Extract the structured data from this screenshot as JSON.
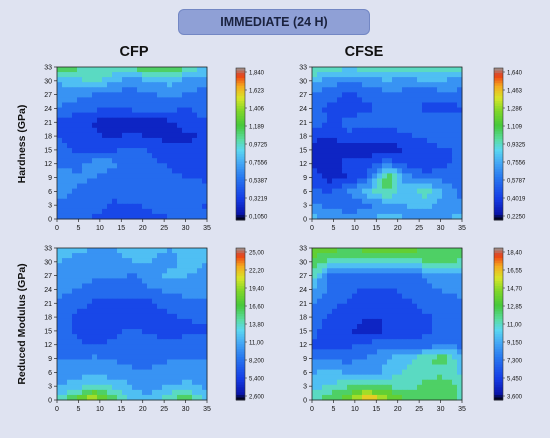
{
  "header": {
    "title": "IMMEDIATE (24 H)"
  },
  "columns": [
    "CFP",
    "CFSE"
  ],
  "rows": [
    "Hardness (GPa)",
    "Reduced Modulus (GPa)"
  ],
  "chart_data": [
    {
      "type": "heatmap",
      "name": "CFP",
      "metric": "Hardness (GPa)",
      "x_ticks": [
        "0",
        "5",
        "10",
        "15",
        "20",
        "25",
        "30",
        "35"
      ],
      "y_ticks": [
        "0",
        "3",
        "6",
        "9",
        "12",
        "15",
        "18",
        "21",
        "24",
        "27",
        "30",
        "33"
      ],
      "xlim": [
        0,
        35
      ],
      "ylim": [
        0,
        33
      ],
      "colorbar_ticks": [
        "1,840",
        "1,623",
        "1,406",
        "1,189",
        "0,9725",
        "0,7556",
        "0,5387",
        "0,3219",
        "0,1050"
      ],
      "colorbar_range": [
        0.105,
        1.84
      ],
      "grid": [
        [
          0.55,
          0.5,
          0.45,
          0.42,
          0.4,
          0.42,
          0.45,
          0.5,
          0.48
        ],
        [
          0.6,
          0.55,
          0.5,
          0.45,
          0.45,
          0.5,
          0.55,
          0.5,
          0.45
        ],
        [
          0.65,
          0.6,
          0.55,
          0.5,
          0.55,
          0.6,
          0.6,
          0.55,
          0.5
        ],
        [
          0.7,
          0.65,
          0.6,
          0.55,
          0.5,
          0.55,
          0.5,
          0.45,
          0.45
        ],
        [
          0.6,
          0.55,
          0.7,
          0.65,
          0.55,
          0.5,
          0.45,
          0.4,
          0.45
        ],
        [
          0.55,
          0.45,
          0.4,
          0.45,
          0.5,
          0.45,
          0.4,
          0.35,
          0.4
        ],
        [
          0.45,
          0.4,
          0.35,
          0.3,
          0.35,
          0.3,
          0.25,
          0.3,
          0.35
        ],
        [
          0.45,
          0.35,
          0.3,
          0.25,
          0.2,
          0.25,
          0.3,
          0.4,
          0.45
        ],
        [
          0.6,
          0.55,
          0.5,
          0.45,
          0.5,
          0.55,
          0.5,
          0.45,
          0.55
        ],
        [
          0.7,
          0.65,
          0.6,
          0.55,
          0.55,
          0.6,
          0.65,
          0.6,
          0.55
        ],
        [
          0.75,
          0.85,
          1.0,
          0.75,
          0.7,
          0.75,
          0.8,
          0.7,
          0.65
        ],
        [
          1.3,
          1.1,
          1.0,
          1.05,
          1.1,
          1.15,
          1.25,
          1.0,
          0.9
        ]
      ]
    },
    {
      "type": "heatmap",
      "name": "CFSE",
      "metric": "Hardness (GPa)",
      "x_ticks": [
        "0",
        "5",
        "10",
        "15",
        "20",
        "25",
        "30",
        "35"
      ],
      "y_ticks": [
        "0",
        "3",
        "6",
        "9",
        "12",
        "15",
        "18",
        "21",
        "24",
        "27",
        "30",
        "33"
      ],
      "xlim": [
        0,
        35
      ],
      "ylim": [
        0,
        33
      ],
      "colorbar_ticks": [
        "1,640",
        "1,463",
        "1,286",
        "1,109",
        "0,9325",
        "0,7556",
        "0,5787",
        "0,4019",
        "0,2250"
      ],
      "colorbar_range": [
        0.225,
        1.64
      ],
      "grid": [
        [
          0.8,
          0.75,
          0.7,
          0.75,
          0.8,
          0.75,
          0.7,
          0.75,
          0.8
        ],
        [
          0.65,
          0.6,
          0.55,
          0.6,
          0.7,
          0.75,
          0.8,
          0.7,
          0.65
        ],
        [
          0.55,
          0.5,
          0.65,
          0.85,
          1.0,
          0.8,
          0.95,
          0.75,
          0.6
        ],
        [
          0.45,
          0.35,
          0.4,
          0.55,
          1.1,
          0.7,
          0.55,
          0.6,
          0.55
        ],
        [
          0.4,
          0.35,
          0.45,
          0.5,
          0.6,
          0.5,
          0.45,
          0.5,
          0.55
        ],
        [
          0.35,
          0.3,
          0.35,
          0.3,
          0.35,
          0.4,
          0.45,
          0.5,
          0.55
        ],
        [
          0.45,
          0.4,
          0.5,
          0.45,
          0.45,
          0.5,
          0.55,
          0.6,
          0.6
        ],
        [
          0.6,
          0.5,
          0.55,
          0.6,
          0.55,
          0.6,
          0.65,
          0.6,
          0.55
        ],
        [
          0.55,
          0.5,
          0.45,
          0.5,
          0.6,
          0.55,
          0.5,
          0.45,
          0.5
        ],
        [
          0.65,
          0.55,
          0.5,
          0.55,
          0.6,
          0.6,
          0.55,
          0.6,
          0.6
        ],
        [
          0.8,
          0.7,
          0.65,
          0.7,
          0.75,
          0.7,
          0.75,
          0.75,
          0.7
        ],
        [
          1.05,
          0.95,
          0.9,
          0.95,
          1.0,
          1.0,
          1.0,
          0.95,
          0.95
        ]
      ]
    },
    {
      "type": "heatmap",
      "name": "CFP",
      "metric": "Reduced Modulus (GPa)",
      "x_ticks": [
        "0",
        "5",
        "10",
        "15",
        "20",
        "25",
        "30",
        "35"
      ],
      "y_ticks": [
        "0",
        "3",
        "6",
        "9",
        "12",
        "15",
        "18",
        "21",
        "24",
        "27",
        "30",
        "33"
      ],
      "xlim": [
        0,
        35
      ],
      "ylim": [
        0,
        33
      ],
      "colorbar_ticks": [
        "25,00",
        "22,20",
        "19,40",
        "16,60",
        "13,80",
        "11,00",
        "8,200",
        "5,400",
        "2,600"
      ],
      "colorbar_range": [
        2.6,
        25.0
      ],
      "grid": [
        [
          13.0,
          17.0,
          21.0,
          16.0,
          12.0,
          11.5,
          15.0,
          16.0,
          12.0
        ],
        [
          11.0,
          12.0,
          13.0,
          12.5,
          11.0,
          10.0,
          11.0,
          11.5,
          10.5
        ],
        [
          9.5,
          10.0,
          10.5,
          10.0,
          9.5,
          9.5,
          10.0,
          10.0,
          9.5
        ],
        [
          9.0,
          9.0,
          9.5,
          9.0,
          8.5,
          8.5,
          9.0,
          9.0,
          9.0
        ],
        [
          8.5,
          7.5,
          7.0,
          7.5,
          8.0,
          8.0,
          8.5,
          8.5,
          8.0
        ],
        [
          8.0,
          7.0,
          6.5,
          7.0,
          7.5,
          7.0,
          6.0,
          6.5,
          7.0
        ],
        [
          8.0,
          7.0,
          6.0,
          5.5,
          6.0,
          6.5,
          7.0,
          7.5,
          8.0
        ],
        [
          9.0,
          8.0,
          7.0,
          6.5,
          6.0,
          7.0,
          8.0,
          8.5,
          9.0
        ],
        [
          10.0,
          9.0,
          8.5,
          8.0,
          8.5,
          9.0,
          9.5,
          10.0,
          10.0
        ],
        [
          11.0,
          10.5,
          9.5,
          9.5,
          9.0,
          10.0,
          11.5,
          11.0,
          10.5
        ],
        [
          11.0,
          10.5,
          10.0,
          10.5,
          11.0,
          11.0,
          10.5,
          11.5,
          11.0
        ],
        [
          12.0,
          11.5,
          11.0,
          11.0,
          11.5,
          11.5,
          11.0,
          12.0,
          12.5
        ]
      ]
    },
    {
      "type": "heatmap",
      "name": "CFSE",
      "metric": "Reduced Modulus (GPa)",
      "x_ticks": [
        "0",
        "5",
        "10",
        "15",
        "20",
        "25",
        "30",
        "35"
      ],
      "y_ticks": [
        "0",
        "3",
        "6",
        "9",
        "12",
        "15",
        "18",
        "21",
        "24",
        "27",
        "30",
        "33"
      ],
      "xlim": [
        0,
        35
      ],
      "ylim": [
        0,
        33
      ],
      "colorbar_ticks": [
        "18,40",
        "16,55",
        "14,70",
        "12,85",
        "11,00",
        "9,150",
        "7,300",
        "5,450",
        "3,600"
      ],
      "colorbar_range": [
        3.6,
        18.4
      ],
      "grid": [
        [
          11.0,
          12.5,
          14.0,
          17.5,
          15.0,
          12.5,
          12.0,
          12.5,
          11.0
        ],
        [
          10.0,
          10.5,
          11.5,
          12.0,
          11.5,
          11.0,
          12.0,
          13.0,
          11.0
        ],
        [
          9.0,
          9.5,
          9.0,
          8.5,
          9.5,
          10.5,
          11.0,
          11.0,
          10.0
        ],
        [
          8.0,
          7.5,
          7.5,
          8.0,
          9.0,
          10.0,
          11.5,
          12.5,
          9.5
        ],
        [
          6.5,
          6.0,
          6.5,
          7.0,
          7.5,
          7.0,
          7.0,
          7.5,
          7.5
        ],
        [
          7.0,
          6.0,
          5.5,
          5.0,
          5.5,
          6.0,
          6.5,
          7.0,
          7.0
        ],
        [
          7.5,
          6.5,
          6.0,
          5.5,
          5.5,
          6.0,
          6.5,
          7.0,
          7.5
        ],
        [
          8.0,
          7.0,
          6.5,
          6.0,
          6.0,
          6.5,
          7.0,
          7.5,
          7.5
        ],
        [
          9.0,
          7.5,
          7.0,
          6.5,
          6.5,
          7.0,
          7.5,
          8.0,
          8.5
        ],
        [
          11.0,
          7.5,
          7.0,
          7.5,
          7.5,
          7.5,
          8.0,
          9.0,
          9.0
        ],
        [
          12.5,
          11.0,
          10.5,
          11.0,
          11.0,
          11.0,
          11.5,
          12.0,
          11.5
        ],
        [
          14.0,
          13.5,
          13.0,
          13.5,
          13.5,
          13.5,
          13.0,
          12.5,
          12.0
        ]
      ]
    }
  ]
}
